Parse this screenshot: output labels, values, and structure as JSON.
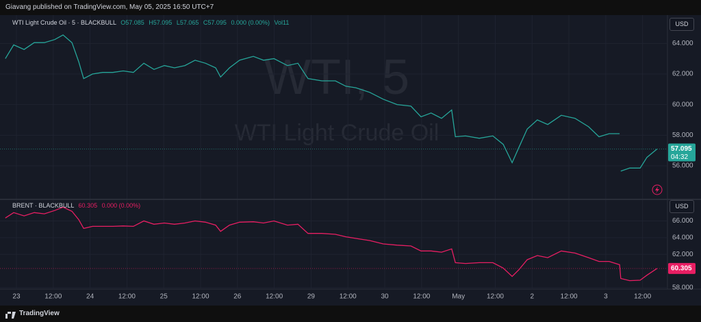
{
  "header": "Giavang published on TradingView.com, May 05, 2025 16:50 UTC+7",
  "footer": "TradingView",
  "chart_data": [
    {
      "type": "line",
      "title": "WTI Light Crude Oil · 5 · BLACKBULL",
      "legend_values": [
        "O57.085",
        "H57.095",
        "L57.065",
        "C57.095",
        "0.000 (0.00%)",
        "Vol11"
      ],
      "watermark": [
        "WTI, 5",
        "WTI Light Crude Oil"
      ],
      "currency": "USD",
      "countdown": "04:32",
      "color": "#26a69a",
      "x": [
        -3.6,
        -0.9,
        2.5,
        5.8,
        9.1,
        12.5,
        15.2,
        18.1,
        20.3,
        21.9,
        24.8,
        28.1,
        31.4,
        34.8,
        38.1,
        41.5,
        44.8,
        48.2,
        51.5,
        54.9,
        58.2,
        61.6,
        64.9,
        66.5,
        69.4,
        72.7,
        77.2,
        80.5,
        83.9,
        88.3,
        91.7,
        95.0,
        99.5,
        103.9,
        107.3,
        110.6,
        115.1,
        119.5,
        124.0,
        128.5,
        131.8,
        135.1,
        138.5,
        141.8,
        143.0,
        146.3,
        150.8,
        155.2,
        158.6,
        161.5,
        163.7,
        166.4,
        169.7,
        173.1,
        177.5,
        182.0,
        186.4,
        189.8,
        193.1,
        196.5,
        196.7,
        196.9,
        199.8,
        203.2,
        205.4,
        208.7
      ],
      "values": [
        63.0,
        63.9,
        63.6,
        64.05,
        64.05,
        64.25,
        64.55,
        64.05,
        62.8,
        61.7,
        62.0,
        62.1,
        62.1,
        62.2,
        62.1,
        62.7,
        62.3,
        62.55,
        62.4,
        62.55,
        62.9,
        62.7,
        62.4,
        61.8,
        62.4,
        62.9,
        63.15,
        62.9,
        63.0,
        62.55,
        62.7,
        61.7,
        61.55,
        61.55,
        61.2,
        61.1,
        60.8,
        60.35,
        60.0,
        59.9,
        59.2,
        59.45,
        59.1,
        59.65,
        57.9,
        57.95,
        57.8,
        57.95,
        57.4,
        56.2,
        57.2,
        58.4,
        59.0,
        58.7,
        59.3,
        59.1,
        58.55,
        57.9,
        58.1,
        58.1,
        null,
        55.65,
        55.85,
        55.85,
        56.55,
        57.095
      ],
      "xlim": [
        -5.35,
        212.1
      ],
      "ylim": [
        53.85,
        65.85
      ],
      "yticks": [
        {
          "value": 56,
          "label": "56.000"
        },
        {
          "value": 58,
          "label": "58.000"
        },
        {
          "value": 60,
          "label": "60.000"
        },
        {
          "value": 62,
          "label": "62.000"
        },
        {
          "value": 64,
          "label": "64.000"
        }
      ],
      "grid": true
    },
    {
      "type": "line",
      "title": "BRENT · BLACKBULL",
      "legend_values": [
        "60.305",
        "0.000 (0.00%)"
      ],
      "currency": "USD",
      "color": "#e91e63",
      "x": [
        -3.6,
        -0.9,
        2.5,
        5.8,
        9.1,
        12.5,
        15.2,
        18.1,
        20.3,
        21.9,
        24.8,
        28.1,
        31.4,
        34.8,
        38.1,
        41.5,
        44.8,
        48.2,
        51.5,
        54.9,
        58.2,
        61.6,
        64.9,
        66.5,
        69.4,
        72.7,
        77.2,
        80.5,
        83.9,
        88.3,
        91.7,
        95.0,
        99.5,
        103.9,
        107.3,
        110.6,
        115.1,
        119.5,
        124.0,
        128.5,
        131.8,
        135.1,
        138.5,
        141.8,
        143.0,
        146.3,
        150.8,
        155.2,
        158.6,
        161.5,
        163.7,
        166.4,
        169.7,
        173.1,
        177.5,
        182.0,
        186.4,
        189.8,
        193.1,
        196.5,
        196.9,
        199.8,
        203.2,
        205.4,
        208.7
      ],
      "values": [
        66.35,
        67.0,
        66.6,
        67.0,
        66.85,
        67.25,
        67.65,
        67.15,
        66.15,
        65.1,
        65.35,
        65.35,
        65.35,
        65.4,
        65.35,
        66.0,
        65.6,
        65.75,
        65.6,
        65.75,
        66.0,
        65.85,
        65.5,
        64.75,
        65.5,
        65.85,
        65.9,
        65.75,
        66.0,
        65.5,
        65.6,
        64.5,
        64.5,
        64.4,
        64.1,
        63.9,
        63.65,
        63.25,
        63.1,
        63.0,
        62.4,
        62.4,
        62.25,
        62.65,
        61.0,
        60.9,
        61.0,
        61.0,
        60.35,
        59.35,
        60.15,
        61.35,
        61.85,
        61.6,
        62.4,
        62.15,
        61.6,
        61.15,
        61.15,
        60.75,
        59.1,
        58.85,
        58.9,
        59.5,
        60.305
      ],
      "xlim": [
        -5.35,
        212.1
      ],
      "ylim": [
        57.83,
        68.5
      ],
      "yticks": [
        {
          "value": 58,
          "label": "58.000"
        },
        {
          "value": 62,
          "label": "62.000"
        },
        {
          "value": 64,
          "label": "64.000"
        },
        {
          "value": 66,
          "label": "66.000"
        }
      ],
      "xticks": [
        {
          "value": 0,
          "label": "23"
        },
        {
          "value": 12,
          "label": "12:00"
        },
        {
          "value": 24,
          "label": "24"
        },
        {
          "value": 36,
          "label": "12:00"
        },
        {
          "value": 48,
          "label": "25"
        },
        {
          "value": 60,
          "label": "12:00"
        },
        {
          "value": 72,
          "label": "26"
        },
        {
          "value": 84,
          "label": "12:00"
        },
        {
          "value": 96,
          "label": "29"
        },
        {
          "value": 108,
          "label": "12:00"
        },
        {
          "value": 120,
          "label": "30"
        },
        {
          "value": 132,
          "label": "12:00"
        },
        {
          "value": 144,
          "label": "May"
        },
        {
          "value": 156,
          "label": "12:00"
        },
        {
          "value": 168,
          "label": "2"
        },
        {
          "value": 180,
          "label": "12:00"
        },
        {
          "value": 192,
          "label": "3"
        },
        {
          "value": 204,
          "label": "12:00"
        }
      ],
      "grid": true
    }
  ]
}
